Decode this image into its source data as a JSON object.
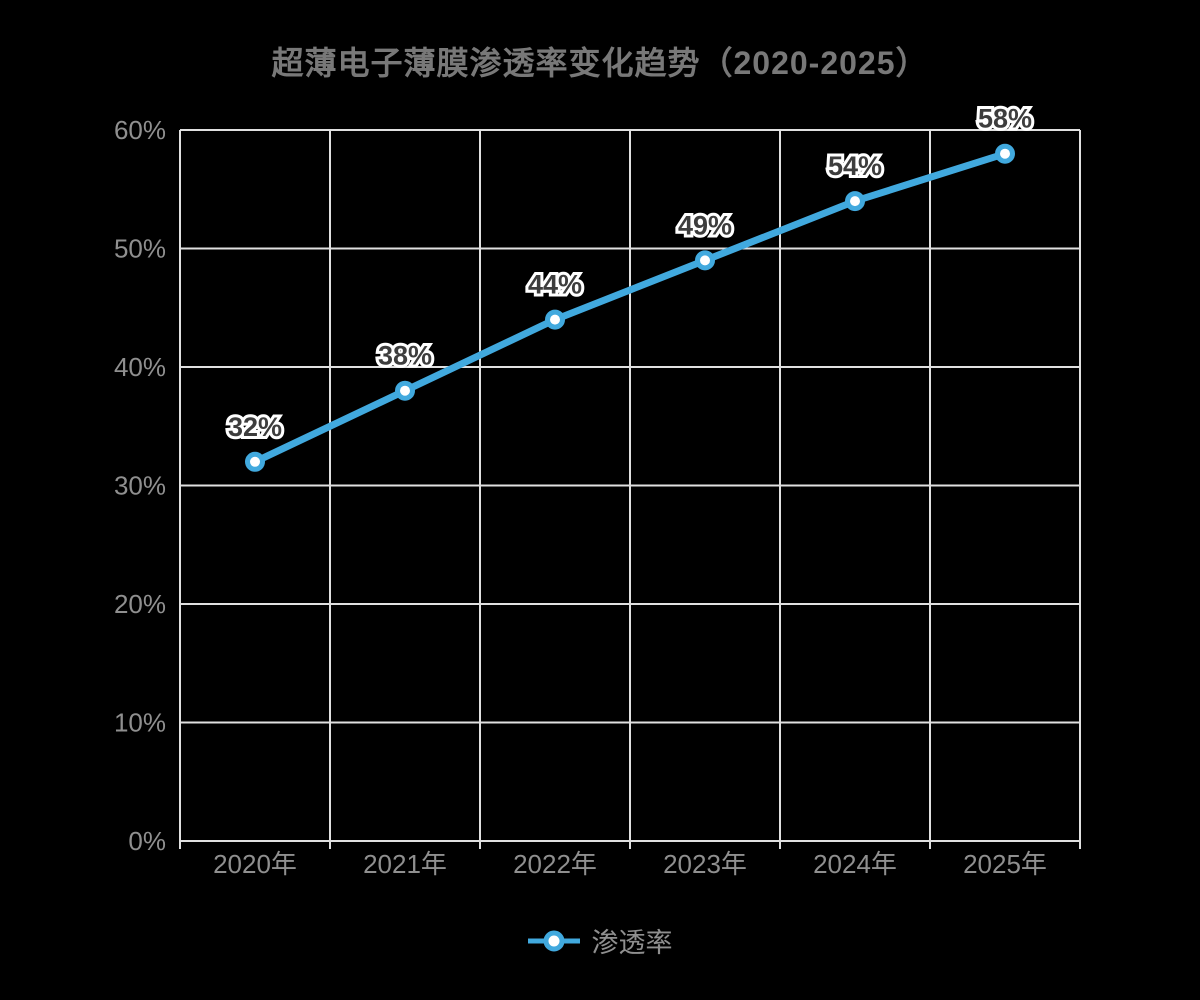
{
  "title": "超薄电子薄膜渗透率变化趋势（2020-2025）",
  "legend": {
    "label": "渗透率"
  },
  "colors": {
    "background": "#000000",
    "title_text": "#787878",
    "axis_label": "#8f8f8f",
    "grid_line": "#e0e0e0",
    "series_line": "#41a9de",
    "marker_fill": "#ffffff",
    "data_label_text": "#3d3d3d",
    "data_label_outline": "#ffffff",
    "legend_text": "#8f8f8f"
  },
  "chart_data": {
    "type": "line",
    "title": "超薄电子薄膜渗透率变化趋势（2020-2025）",
    "categories": [
      "2020年",
      "2021年",
      "2022年",
      "2023年",
      "2024年",
      "2025年"
    ],
    "series": [
      {
        "name": "渗透率",
        "values": [
          32,
          38,
          44,
          49,
          54,
          58
        ],
        "data_labels": [
          "32%",
          "38%",
          "44%",
          "49%",
          "54%",
          "58%"
        ]
      }
    ],
    "xlabel": "",
    "ylabel": "",
    "y_ticks": [
      "0%",
      "10%",
      "20%",
      "30%",
      "40%",
      "50%",
      "60%"
    ],
    "y_tick_values": [
      0,
      10,
      20,
      30,
      40,
      50,
      60
    ],
    "ylim": [
      0,
      60
    ],
    "grid": "on",
    "legend_position": "bottom-center",
    "smooth": false
  }
}
